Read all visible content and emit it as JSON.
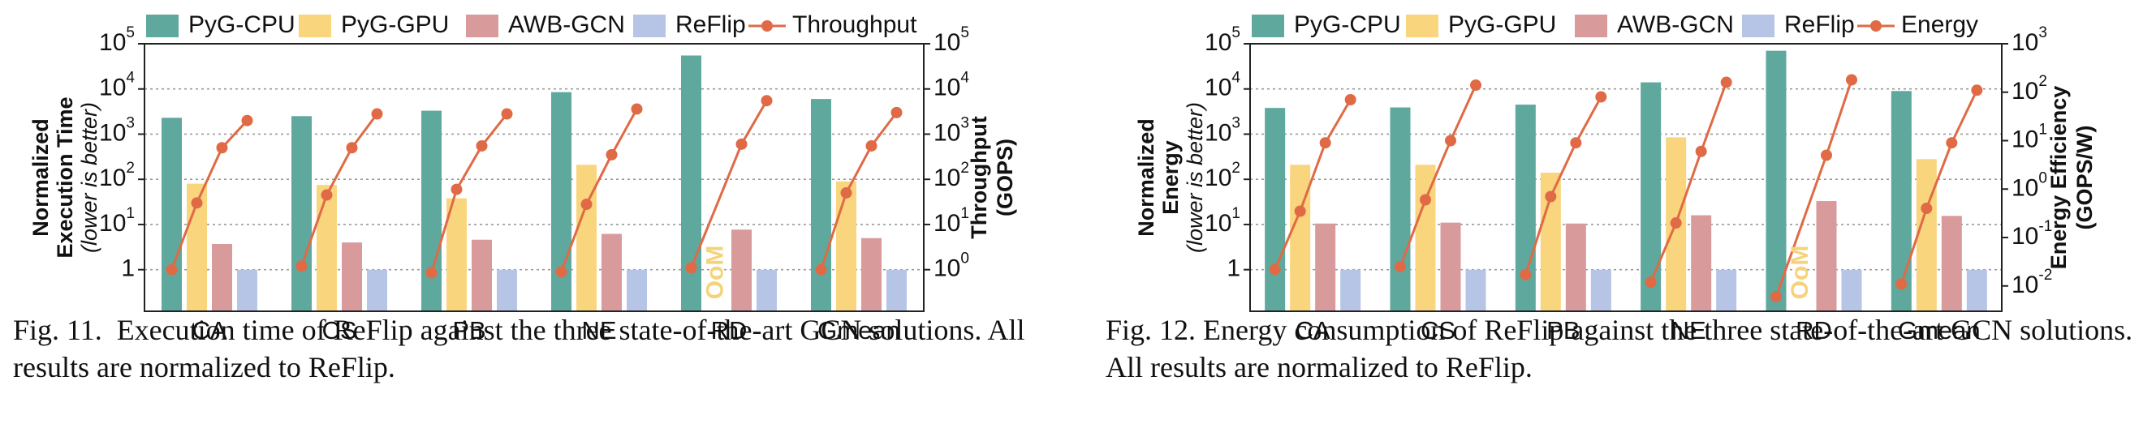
{
  "chart_data": [
    {
      "type": "bar",
      "categories": [
        "CA",
        "CS",
        "PB",
        "NE",
        "RD",
        "Gmean"
      ],
      "series": [
        {
          "name": "PyG-CPU",
          "color": "#5fa89d",
          "values": [
            2300,
            2500,
            3300,
            8500,
            55000,
            6000
          ]
        },
        {
          "name": "PyG-GPU",
          "color": "#f9d57e",
          "values": [
            80,
            75,
            38,
            210,
            null,
            90
          ]
        },
        {
          "name": "AWB-GCN",
          "color": "#d99a9c",
          "values": [
            3.7,
            4.0,
            4.6,
            6.2,
            7.7,
            5.0
          ]
        },
        {
          "name": "ReFlip",
          "color": "#b6c5e6",
          "values": [
            1,
            1,
            1,
            1,
            1,
            1
          ]
        }
      ],
      "line_series": {
        "name": "Throughput",
        "color": "#e06a45",
        "axis": "right",
        "values": [
          [
            1.0,
            30,
            500,
            2000
          ],
          [
            1.2,
            45,
            500,
            2800
          ],
          [
            0.85,
            60,
            550,
            2800
          ],
          [
            0.9,
            28,
            350,
            3600
          ],
          [
            1.1,
            600,
            5500
          ],
          [
            1.0,
            50,
            550,
            3000
          ]
        ]
      },
      "annotation": {
        "text": "OoM",
        "category": "RD",
        "color": "#f6d27a"
      },
      "y_scale": "log",
      "ylim": [
        0.12,
        100000
      ],
      "y2lim": [
        0.12,
        100000
      ],
      "yticks": [
        {
          "v": 1,
          "t": "1"
        },
        {
          "v": 10,
          "t": "10",
          "sup": "1"
        },
        {
          "v": 100,
          "t": "10",
          "sup": "2"
        },
        {
          "v": 1000,
          "t": "10",
          "sup": "3"
        },
        {
          "v": 10000,
          "t": "10",
          "sup": "4"
        },
        {
          "v": 100000,
          "t": "10",
          "sup": "5"
        }
      ],
      "y2ticks": [
        {
          "v": 1,
          "t": "10",
          "sup": "0"
        },
        {
          "v": 10,
          "t": "10",
          "sup": "1"
        },
        {
          "v": 100,
          "t": "10",
          "sup": "2"
        },
        {
          "v": 1000,
          "t": "10",
          "sup": "3"
        },
        {
          "v": 10000,
          "t": "10",
          "sup": "4"
        },
        {
          "v": 100000,
          "t": "10",
          "sup": "5"
        }
      ],
      "ylabel_lines": [
        {
          "text": "Normalized",
          "italic": false
        },
        {
          "text": "Execution Time",
          "italic": false
        },
        {
          "text": "(lower is better)",
          "italic": true
        }
      ],
      "y2label_lines": [
        {
          "text": "Throughput",
          "italic": false
        },
        {
          "text": "(GOPS)",
          "italic": false
        }
      ],
      "grid": true,
      "legend_position": "top"
    },
    {
      "type": "bar",
      "categories": [
        "CA",
        "CS",
        "PB",
        "NE",
        "RD",
        "Gmean"
      ],
      "series": [
        {
          "name": "PyG-CPU",
          "color": "#5fa89d",
          "values": [
            3800,
            3900,
            4500,
            14000,
            70000,
            9000
          ]
        },
        {
          "name": "PyG-GPU",
          "color": "#f9d57e",
          "values": [
            210,
            210,
            140,
            850,
            null,
            280
          ]
        },
        {
          "name": "AWB-GCN",
          "color": "#d99a9c",
          "values": [
            10.5,
            11,
            10.5,
            16,
            33,
            15.5
          ]
        },
        {
          "name": "ReFlip",
          "color": "#b6c5e6",
          "values": [
            1,
            1,
            1,
            1,
            1,
            1
          ]
        }
      ],
      "line_series": {
        "name": "Energy",
        "color": "#e06a45",
        "axis": "right",
        "values": [
          [
            0.022,
            0.35,
            9,
            70
          ],
          [
            0.025,
            0.6,
            10,
            140
          ],
          [
            0.017,
            0.7,
            9,
            80
          ],
          [
            0.012,
            0.2,
            6,
            160
          ],
          [
            0.006,
            5,
            180
          ],
          [
            0.011,
            0.4,
            9,
            110
          ]
        ]
      },
      "annotation": {
        "text": "OoM",
        "category": "RD",
        "color": "#f6d27a"
      },
      "y_scale": "log",
      "ylim": [
        0.12,
        100000
      ],
      "y2lim": [
        0.003,
        1000
      ],
      "yticks": [
        {
          "v": 1,
          "t": "1"
        },
        {
          "v": 10,
          "t": "10",
          "sup": "1"
        },
        {
          "v": 100,
          "t": "10",
          "sup": "2"
        },
        {
          "v": 1000,
          "t": "10",
          "sup": "3"
        },
        {
          "v": 10000,
          "t": "10",
          "sup": "4"
        },
        {
          "v": 100000,
          "t": "10",
          "sup": "5"
        }
      ],
      "y2ticks": [
        {
          "v": 0.01,
          "t": "10",
          "sup": "-2"
        },
        {
          "v": 0.1,
          "t": "10",
          "sup": "-1"
        },
        {
          "v": 1,
          "t": "10",
          "sup": "0"
        },
        {
          "v": 10,
          "t": "10",
          "sup": "1"
        },
        {
          "v": 100,
          "t": "10",
          "sup": "2"
        },
        {
          "v": 1000,
          "t": "10",
          "sup": "3"
        }
      ],
      "ylabel_lines": [
        {
          "text": "Normalized",
          "italic": false
        },
        {
          "text": "Energy",
          "italic": false
        },
        {
          "text": "(lower is better)",
          "italic": true
        }
      ],
      "y2label_lines": [
        {
          "text": "Energy Efficiency",
          "italic": false
        },
        {
          "text": "(GOPS/W)",
          "italic": false
        }
      ],
      "grid": true,
      "legend_position": "top"
    }
  ],
  "captions": [
    {
      "label": "Fig. 11.",
      "text": "Execution time of ReFlip against the three state-of-the-art GCN solutions. All results are normalized to ReFlip."
    },
    {
      "label": "Fig. 12.",
      "text": "Energy consumption of ReFlip against the three state-of-the-art GCN solutions. All results are normalized to ReFlip."
    }
  ]
}
